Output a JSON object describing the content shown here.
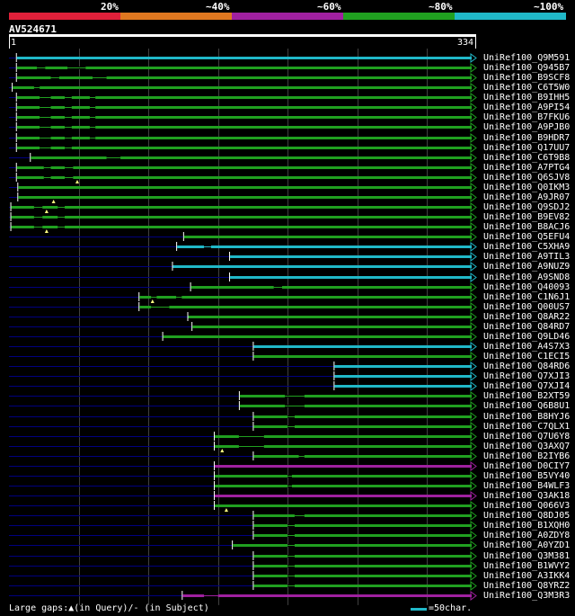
{
  "colors": {
    "bg": "#000000",
    "c20": "#e0203a",
    "c40": "#e07820",
    "c60": "#a020a0",
    "c80": "#20a020",
    "c100": "#20b8c8",
    "navy": "#000080",
    "grid": "#404040",
    "gapmark": "#ffff80"
  },
  "legend": {
    "labels": [
      "20%",
      "~40%",
      "~60%",
      "~80%",
      "~100%"
    ]
  },
  "query": {
    "id": "AV524671",
    "start": "1",
    "end": "334",
    "length": 334
  },
  "footer": {
    "text": "Large gaps:▲(in Query)/- (in Subject)",
    "scale": "=50char."
  },
  "hits": [
    {
      "name": "UniRef100_Q9M591",
      "color": "c100",
      "s": 5,
      "gaps": []
    },
    {
      "name": "UniRef100_Q945B7",
      "color": "c80",
      "s": 5,
      "gaps": [
        [
          20,
          26
        ],
        [
          42,
          55
        ]
      ]
    },
    {
      "name": "UniRef100_B9SCF8",
      "color": "c80",
      "s": 5,
      "gaps": [
        [
          30,
          36
        ],
        [
          60,
          70
        ]
      ]
    },
    {
      "name": "UniRef100_C6T5W0",
      "color": "c80",
      "s": 2,
      "gaps": [
        [
          18,
          22
        ]
      ]
    },
    {
      "name": "UniRef100_B9IHH5",
      "color": "c80",
      "s": 5,
      "gaps": [
        [
          22,
          30
        ],
        [
          40,
          45
        ],
        [
          58,
          62
        ]
      ]
    },
    {
      "name": "UniRef100_A9PI54",
      "color": "c80",
      "s": 5,
      "gaps": [
        [
          22,
          30
        ],
        [
          40,
          45
        ],
        [
          58,
          62
        ]
      ]
    },
    {
      "name": "UniRef100_B7FKU6",
      "color": "c80",
      "s": 5,
      "gaps": [
        [
          22,
          30
        ],
        [
          40,
          45
        ],
        [
          58,
          62
        ]
      ]
    },
    {
      "name": "UniRef100_A9PJB0",
      "color": "c80",
      "s": 5,
      "gaps": [
        [
          22,
          30
        ],
        [
          40,
          45
        ],
        [
          58,
          62
        ]
      ]
    },
    {
      "name": "UniRef100_B9HDR7",
      "color": "c80",
      "s": 5,
      "gaps": [
        [
          22,
          30
        ],
        [
          40,
          45
        ],
        [
          58,
          62
        ]
      ]
    },
    {
      "name": "UniRef100_Q17UU7",
      "color": "c80",
      "s": 5,
      "gaps": [
        [
          22,
          30
        ],
        [
          40,
          45
        ]
      ]
    },
    {
      "name": "UniRef100_C6T9B8",
      "color": "c80",
      "s": 15,
      "gaps": [
        [
          70,
          80
        ]
      ]
    },
    {
      "name": "UniRef100_A7PTG4",
      "color": "c80",
      "s": 5,
      "gaps": [
        [
          25,
          30
        ],
        [
          40,
          46
        ]
      ]
    },
    {
      "name": "UniRef100_Q6SJV8",
      "color": "c80",
      "s": 5,
      "gaps": [
        [
          25,
          30
        ],
        [
          40,
          46
        ]
      ],
      "tri": [
        49
      ]
    },
    {
      "name": "UniRef100_Q0IKM3",
      "color": "c80",
      "s": 6,
      "gaps": [],
      "tri": []
    },
    {
      "name": "UniRef100_A9JR07",
      "color": "c80",
      "s": 6,
      "gaps": [],
      "tri": [
        32
      ]
    },
    {
      "name": "UniRef100_Q9SDJ2",
      "color": "c80",
      "s": 1,
      "gaps": [
        [
          18,
          24
        ],
        [
          35,
          40
        ]
      ],
      "tri": [
        27
      ]
    },
    {
      "name": "UniRef100_B9EV82",
      "color": "c80",
      "s": 1,
      "gaps": [
        [
          18,
          24
        ],
        [
          35,
          40
        ]
      ]
    },
    {
      "name": "UniRef100_B8ACJ6",
      "color": "c80",
      "s": 1,
      "gaps": [
        [
          18,
          24
        ],
        [
          35,
          40
        ]
      ],
      "tri": [
        27
      ]
    },
    {
      "name": "UniRef100_Q5EFU4",
      "color": "c80",
      "s": 125,
      "gaps": []
    },
    {
      "name": "UniRef100_C5XHA9",
      "color": "c100",
      "s": 120,
      "gaps": [
        [
          140,
          145
        ]
      ]
    },
    {
      "name": "UniRef100_A9TIL3",
      "color": "c100",
      "s": 158,
      "gaps": []
    },
    {
      "name": "UniRef100_A9NUZ9",
      "color": "c100",
      "s": 117,
      "gaps": []
    },
    {
      "name": "UniRef100_A9SND8",
      "color": "c100",
      "s": 158,
      "gaps": []
    },
    {
      "name": "UniRef100_Q40093",
      "color": "c80",
      "s": 130,
      "gaps": [
        [
          190,
          196
        ]
      ]
    },
    {
      "name": "UniRef100_C1N6J1",
      "color": "c80",
      "s": 93,
      "gaps": [
        [
          102,
          106
        ],
        [
          120,
          124
        ]
      ],
      "tri": [
        103
      ]
    },
    {
      "name": "UniRef100_Q00US7",
      "color": "c80",
      "s": 93,
      "gaps": [
        [
          102,
          115
        ]
      ]
    },
    {
      "name": "UniRef100_Q8AR22",
      "color": "c80",
      "s": 128,
      "gaps": []
    },
    {
      "name": "UniRef100_Q84RD7",
      "color": "c80",
      "s": 131,
      "gaps": []
    },
    {
      "name": "UniRef100_Q9LD46",
      "color": "c80",
      "s": 110,
      "gaps": []
    },
    {
      "name": "UniRef100_A4S7X3",
      "color": "c100",
      "s": 175,
      "gaps": []
    },
    {
      "name": "UniRef100_C1ECI5",
      "color": "c80",
      "s": 175,
      "gaps": []
    },
    {
      "name": "UniRef100_Q84RD6",
      "color": "c100",
      "s": 233,
      "gaps": []
    },
    {
      "name": "UniRef100_Q7XJI3",
      "color": "c100",
      "s": 233,
      "gaps": []
    },
    {
      "name": "UniRef100_Q7XJI4",
      "color": "c100",
      "s": 233,
      "gaps": []
    },
    {
      "name": "UniRef100_B2XT59",
      "color": "c80",
      "s": 165,
      "gaps": [
        [
          198,
          212
        ]
      ]
    },
    {
      "name": "UniRef100_Q6B8U1",
      "color": "c80",
      "s": 165,
      "gaps": [
        [
          198,
          212
        ]
      ]
    },
    {
      "name": "UniRef100_B8HYJ6",
      "color": "c80",
      "s": 175,
      "gaps": [
        [
          200,
          205
        ]
      ]
    },
    {
      "name": "UniRef100_C7QLX1",
      "color": "c80",
      "s": 175,
      "gaps": [
        [
          200,
          205
        ]
      ]
    },
    {
      "name": "UniRef100_Q7U6Y8",
      "color": "c80",
      "s": 147,
      "gaps": [
        [
          165,
          183
        ]
      ]
    },
    {
      "name": "UniRef100_Q3AXQ7",
      "color": "c80",
      "s": 147,
      "gaps": [
        [
          165,
          183
        ]
      ],
      "tri": [
        153
      ]
    },
    {
      "name": "UniRef100_B2IYB6",
      "color": "c80",
      "s": 175,
      "gaps": [
        [
          208,
          212
        ]
      ]
    },
    {
      "name": "UniRef100_D0CIY7",
      "color": "c60",
      "s": 147,
      "gaps": []
    },
    {
      "name": "UniRef100_B5VY40",
      "color": "c80",
      "s": 147,
      "gaps": [
        [
          200,
          203
        ]
      ]
    },
    {
      "name": "UniRef100_B4WLF3",
      "color": "c80",
      "s": 147,
      "gaps": [
        [
          200,
          203
        ]
      ]
    },
    {
      "name": "UniRef100_Q3AK18",
      "color": "c60",
      "s": 147,
      "gaps": []
    },
    {
      "name": "UniRef100_Q066V3",
      "color": "c80",
      "s": 147,
      "gaps": [],
      "tri": [
        156
      ]
    },
    {
      "name": "UniRef100_Q8DJ05",
      "color": "c80",
      "s": 175,
      "gaps": [
        [
          205,
          212
        ]
      ]
    },
    {
      "name": "UniRef100_B1XQH0",
      "color": "c80",
      "s": 175,
      "gaps": [
        [
          200,
          205
        ]
      ]
    },
    {
      "name": "UniRef100_A0ZDY8",
      "color": "c80",
      "s": 175,
      "gaps": [
        [
          200,
          205
        ]
      ]
    },
    {
      "name": "UniRef100_A0YZD1",
      "color": "c80",
      "s": 160,
      "gaps": [
        [
          200,
          205
        ]
      ]
    },
    {
      "name": "UniRef100_Q3M381",
      "color": "c80",
      "s": 175,
      "gaps": [
        [
          200,
          205
        ]
      ]
    },
    {
      "name": "UniRef100_B1WVY2",
      "color": "c80",
      "s": 175,
      "gaps": [
        [
          200,
          205
        ]
      ]
    },
    {
      "name": "UniRef100_A3IKK4",
      "color": "c80",
      "s": 175,
      "gaps": [
        [
          200,
          205
        ]
      ]
    },
    {
      "name": "UniRef100_Q8YRZ2",
      "color": "c80",
      "s": 175,
      "gaps": [
        [
          200,
          205
        ]
      ]
    },
    {
      "name": "UniRef100_Q3M3R3",
      "color": "c60",
      "s": 124,
      "gaps": [
        [
          140,
          150
        ]
      ]
    }
  ]
}
